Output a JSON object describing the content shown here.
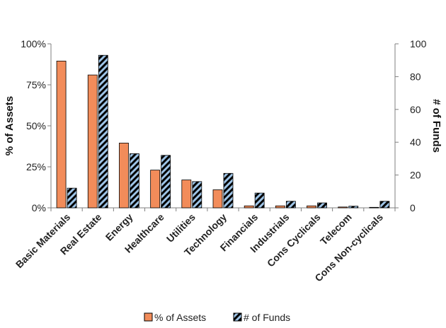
{
  "chart_data": {
    "type": "bar",
    "categories": [
      "Basic Materials",
      "Real Estate",
      "Energy",
      "Healthcare",
      "Utilities",
      "Technology",
      "Financials",
      "Industrials",
      "Cons Cyclicals",
      "Telecom",
      "Cons Non-cyclicals"
    ],
    "series": [
      {
        "name": "% of Assets",
        "axis": "left",
        "values": [
          89.5,
          81,
          39.5,
          23,
          17,
          11,
          1.2,
          1.2,
          1.2,
          0.5,
          0.3
        ],
        "color": "#f28c5a",
        "pattern": "solid"
      },
      {
        "name": "# of Funds",
        "axis": "right",
        "values": [
          12,
          93,
          33,
          32,
          16,
          21,
          9,
          4,
          3,
          1,
          4
        ],
        "color": "#9dc3e6",
        "pattern": "diagonal-hatch-black"
      }
    ],
    "ylabel_left": "% of Assets",
    "ylabel_right": "# of Funds",
    "ylim_left": [
      0,
      100
    ],
    "ylim_right": [
      0,
      100
    ],
    "yticks_left": [
      "0%",
      "25%",
      "50%",
      "75%",
      "100%"
    ],
    "yticks_right": [
      "0",
      "20",
      "40",
      "60",
      "80",
      "100"
    ],
    "yticks_left_values": [
      0,
      25,
      50,
      75,
      100
    ],
    "yticks_right_values": [
      0,
      20,
      40,
      60,
      80,
      100
    ],
    "grid": false,
    "legend_position": "bottom"
  }
}
